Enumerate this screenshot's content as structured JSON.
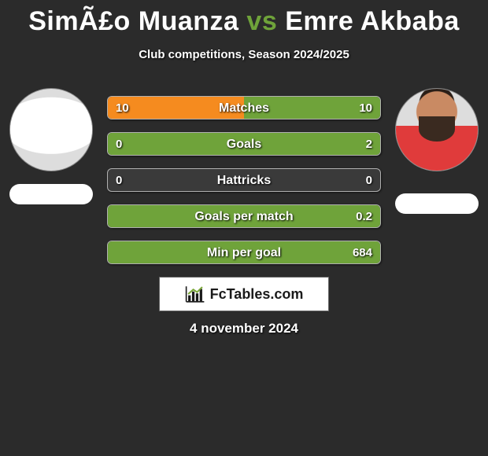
{
  "colors": {
    "bg": "#2b2b2b",
    "player1_bar": "#f58b1f",
    "player2_bar": "#6fa33a",
    "neutral_bar": "#3a3a3a",
    "vs": "#6fa33a",
    "title": "#ffffff",
    "text": "#ffffff"
  },
  "fontsize": {
    "title": 34,
    "subtitle": 15,
    "bar_label": 16,
    "bar_value": 15,
    "date": 17
  },
  "player1": {
    "name": "SimÃ£o Muanza"
  },
  "player2": {
    "name": "Emre Akbaba"
  },
  "vs_label": "vs",
  "subtitle": "Club competitions, Season 2024/2025",
  "bars": [
    {
      "label": "Matches",
      "v1": "10",
      "v2": "10",
      "w1": 50,
      "w2": 50,
      "c1": "#f58b1f",
      "c2": "#6fa33a"
    },
    {
      "label": "Goals",
      "v1": "0",
      "v2": "2",
      "w1": 0,
      "w2": 100,
      "c1": "#f58b1f",
      "c2": "#6fa33a"
    },
    {
      "label": "Hattricks",
      "v1": "0",
      "v2": "0",
      "w1": 0,
      "w2": 0,
      "c1": "#3a3a3a",
      "c2": "#3a3a3a"
    },
    {
      "label": "Goals per match",
      "v1": "",
      "v2": "0.2",
      "w1": 0,
      "w2": 100,
      "c1": "#f58b1f",
      "c2": "#6fa33a"
    },
    {
      "label": "Min per goal",
      "v1": "",
      "v2": "684",
      "w1": 0,
      "w2": 100,
      "c1": "#f58b1f",
      "c2": "#6fa33a"
    }
  ],
  "fctables_label": "FcTables.com",
  "date": "4 november 2024"
}
